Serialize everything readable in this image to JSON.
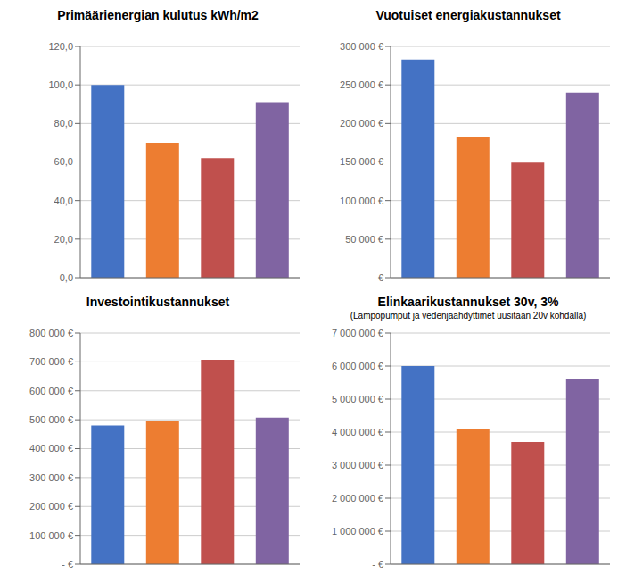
{
  "chart_data": [
    {
      "type": "bar",
      "title": "Primäärienergian kulutus kWh/m2",
      "categories": [
        null,
        null,
        null,
        null
      ],
      "values": [
        100.0,
        70.0,
        62.0,
        91.0
      ],
      "colors": [
        "#4472C4",
        "#ED7D31",
        "#C0504D",
        "#8064A2"
      ],
      "ylim": [
        0,
        120
      ],
      "yticks": [
        {
          "value": 0,
          "label": "0,0"
        },
        {
          "value": 20,
          "label": "20,0"
        },
        {
          "value": 40,
          "label": "40,0"
        },
        {
          "value": 60,
          "label": "60,0"
        },
        {
          "value": 80,
          "label": "80,0"
        },
        {
          "value": 100,
          "label": "100,0"
        },
        {
          "value": 120,
          "label": "120,0"
        }
      ],
      "grid": true,
      "tick_labels": "y"
    },
    {
      "type": "bar",
      "title": "Vuotuiset energiakustannukset",
      "categories": [
        null,
        null,
        null,
        null
      ],
      "values": [
        283000,
        182000,
        149000,
        240000
      ],
      "colors": [
        "#4472C4",
        "#ED7D31",
        "#C0504D",
        "#8064A2"
      ],
      "ylim": [
        0,
        300000
      ],
      "yticks": [
        {
          "value": 0,
          "label": "-  €"
        },
        {
          "value": 50000,
          "label": "50 000 €"
        },
        {
          "value": 100000,
          "label": "100 000 €"
        },
        {
          "value": 150000,
          "label": "150 000 €"
        },
        {
          "value": 200000,
          "label": "200 000 €"
        },
        {
          "value": 250000,
          "label": "250 000 €"
        },
        {
          "value": 300000,
          "label": "300 000 €"
        }
      ],
      "grid": true,
      "tick_labels": "y"
    },
    {
      "type": "bar",
      "title": "Investointikustannukset",
      "categories": [
        null,
        null,
        null,
        null
      ],
      "values": [
        480000,
        497000,
        707000,
        507000
      ],
      "colors": [
        "#4472C4",
        "#ED7D31",
        "#C0504D",
        "#8064A2"
      ],
      "ylim": [
        0,
        800000
      ],
      "yticks": [
        {
          "value": 0,
          "label": "-  €"
        },
        {
          "value": 100000,
          "label": "100 000 €"
        },
        {
          "value": 200000,
          "label": "200 000 €"
        },
        {
          "value": 300000,
          "label": "300 000 €"
        },
        {
          "value": 400000,
          "label": "400 000 €"
        },
        {
          "value": 500000,
          "label": "500 000 €"
        },
        {
          "value": 600000,
          "label": "600 000 €"
        },
        {
          "value": 700000,
          "label": "700 000 €"
        },
        {
          "value": 800000,
          "label": "800 000 €"
        }
      ],
      "grid": true,
      "tick_labels": "y"
    },
    {
      "type": "bar",
      "title": "Elinkaarikustannukset 30v, 3%",
      "subtitle": "(Lämpöpumput ja vedenjäähdyttimet uusitaan 20v kohdalla)",
      "categories": [
        null,
        null,
        null,
        null
      ],
      "values": [
        6000000,
        4100000,
        3700000,
        5600000
      ],
      "colors": [
        "#4472C4",
        "#ED7D31",
        "#C0504D",
        "#8064A2"
      ],
      "ylim": [
        0,
        7000000
      ],
      "yticks": [
        {
          "value": 0,
          "label": "-  €"
        },
        {
          "value": 1000000,
          "label": "1 000 000 €"
        },
        {
          "value": 2000000,
          "label": "2 000 000 €"
        },
        {
          "value": 3000000,
          "label": "3 000 000 €"
        },
        {
          "value": 4000000,
          "label": "4 000 000 €"
        },
        {
          "value": 5000000,
          "label": "5 000 000 €"
        },
        {
          "value": 6000000,
          "label": "6 000 000 €"
        },
        {
          "value": 7000000,
          "label": "7 000 000 €"
        }
      ],
      "grid": true,
      "tick_labels": "y"
    }
  ]
}
